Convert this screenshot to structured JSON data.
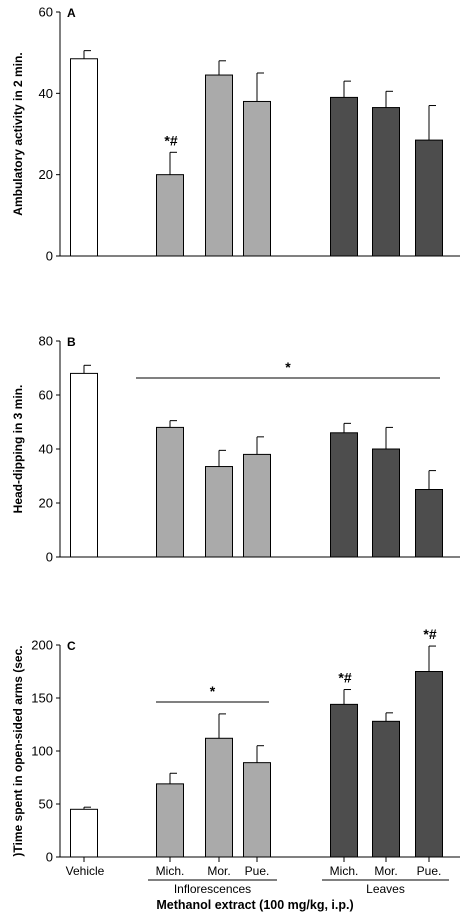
{
  "chart_data": [
    {
      "type": "bar",
      "panel": "A",
      "ylabel": "Ambulatory activity in 2 min.",
      "ylim": [
        0,
        60
      ],
      "yticks": [
        0,
        20,
        40,
        60
      ],
      "categories": [
        "Vehicle",
        "Mich.",
        "Mor.",
        "Pue.",
        "Mich.",
        "Mor.",
        "Pue."
      ],
      "values": [
        48.5,
        20.0,
        44.5,
        38.0,
        39.0,
        36.5,
        28.5
      ],
      "errors": [
        2.0,
        5.5,
        3.5,
        7.0,
        4.0,
        4.0,
        8.5
      ],
      "colors": [
        "#ffffff",
        "#aaaaaa",
        "#aaaaaa",
        "#aaaaaa",
        "#4d4d4d",
        "#4d4d4d",
        "#4d4d4d"
      ],
      "bar_annotations": [
        "",
        "*#",
        "",
        "",
        "",
        "",
        ""
      ],
      "bracket": null
    },
    {
      "type": "bar",
      "panel": "B",
      "ylabel": "Head-dipping in 3 min.",
      "ylim": [
        0,
        80
      ],
      "yticks": [
        0,
        20,
        40,
        60,
        80
      ],
      "categories": [
        "Vehicle",
        "Mich.",
        "Mor.",
        "Pue.",
        "Mich.",
        "Mor.",
        "Pue."
      ],
      "values": [
        68.0,
        48.0,
        33.5,
        38.0,
        46.0,
        40.0,
        25.0
      ],
      "errors": [
        3.0,
        2.5,
        6.0,
        6.5,
        3.5,
        8.0,
        7.0
      ],
      "colors": [
        "#ffffff",
        "#aaaaaa",
        "#aaaaaa",
        "#aaaaaa",
        "#4d4d4d",
        "#4d4d4d",
        "#4d4d4d"
      ],
      "bar_annotations": [
        "",
        "",
        "",
        "",
        "",
        "",
        ""
      ],
      "bracket": {
        "from": 1,
        "to": 6,
        "label": "*"
      }
    },
    {
      "type": "bar",
      "panel": "C",
      "ylabel": ")Time spent in open-sided arms (sec.",
      "ylim": [
        0,
        200
      ],
      "yticks": [
        0,
        50,
        100,
        150,
        200
      ],
      "categories": [
        "Vehicle",
        "Mich.",
        "Mor.",
        "Pue.",
        "Mich.",
        "Mor.",
        "Pue."
      ],
      "values": [
        45.0,
        69.0,
        112.0,
        89.0,
        144.0,
        128.0,
        175.0
      ],
      "errors": [
        2.0,
        10.0,
        23.0,
        16.0,
        14.0,
        8.0,
        24.0
      ],
      "colors": [
        "#ffffff",
        "#aaaaaa",
        "#aaaaaa",
        "#aaaaaa",
        "#4d4d4d",
        "#4d4d4d",
        "#4d4d4d"
      ],
      "bar_annotations": [
        "",
        "",
        "",
        "",
        "*#",
        "",
        "*#"
      ],
      "bracket": {
        "from": 1,
        "to": 3,
        "label": "*"
      },
      "groups": [
        {
          "label": "Inflorescences",
          "from": 1,
          "to": 3
        },
        {
          "label": "Leaves",
          "from": 4,
          "to": 6
        }
      ],
      "xlabel": "Methanol extract (100 mg/kg, i.p.)"
    }
  ]
}
